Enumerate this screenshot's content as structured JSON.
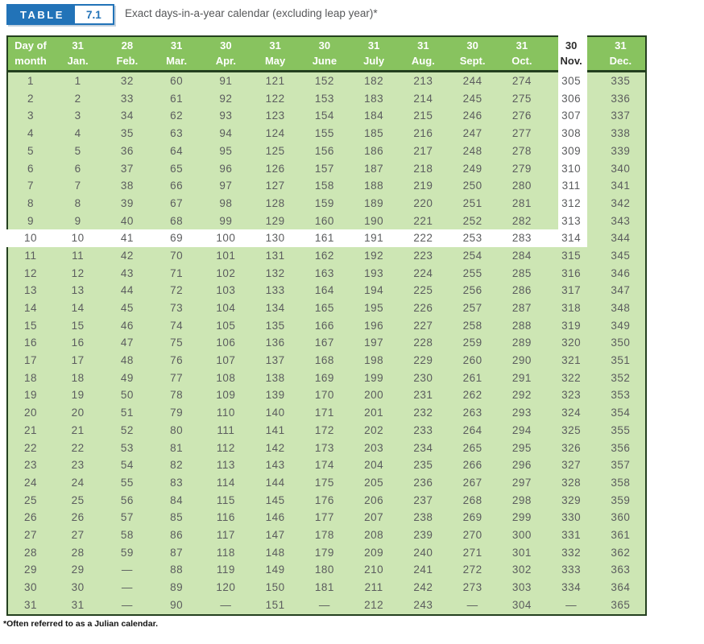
{
  "badge": {
    "label": "TABLE",
    "number": "7.1"
  },
  "title": "Exact days-in-a-year calendar (excluding leap year)*",
  "footnote": "*Often referred to as a Julian calendar.",
  "colors": {
    "header_green": "#88c35f",
    "body_green": "#cde6b4",
    "border_dark": "#24401f",
    "badge_blue": "#2273b8",
    "body_text": "#5b5c5e"
  },
  "table": {
    "corner_header": [
      "Day of",
      "month"
    ],
    "columns": [
      {
        "days": "31",
        "month": "Jan."
      },
      {
        "days": "28",
        "month": "Feb."
      },
      {
        "days": "31",
        "month": "Mar."
      },
      {
        "days": "30",
        "month": "Apr."
      },
      {
        "days": "31",
        "month": "May"
      },
      {
        "days": "30",
        "month": "June"
      },
      {
        "days": "31",
        "month": "July"
      },
      {
        "days": "31",
        "month": "Aug."
      },
      {
        "days": "30",
        "month": "Sept."
      },
      {
        "days": "31",
        "month": "Oct."
      },
      {
        "days": "30",
        "month": "Nov."
      },
      {
        "days": "31",
        "month": "Dec."
      }
    ],
    "highlight": {
      "day": 10,
      "month": "Nov.",
      "month_index": 10,
      "intersection_value": 314
    },
    "rows": [
      [
        1,
        1,
        32,
        60,
        91,
        121,
        152,
        182,
        213,
        244,
        274,
        305,
        335
      ],
      [
        2,
        2,
        33,
        61,
        92,
        122,
        153,
        183,
        214,
        245,
        275,
        306,
        336
      ],
      [
        3,
        3,
        34,
        62,
        93,
        123,
        154,
        184,
        215,
        246,
        276,
        307,
        337
      ],
      [
        4,
        4,
        35,
        63,
        94,
        124,
        155,
        185,
        216,
        247,
        277,
        308,
        338
      ],
      [
        5,
        5,
        36,
        64,
        95,
        125,
        156,
        186,
        217,
        248,
        278,
        309,
        339
      ],
      [
        6,
        6,
        37,
        65,
        96,
        126,
        157,
        187,
        218,
        249,
        279,
        310,
        340
      ],
      [
        7,
        7,
        38,
        66,
        97,
        127,
        158,
        188,
        219,
        250,
        280,
        311,
        341
      ],
      [
        8,
        8,
        39,
        67,
        98,
        128,
        159,
        189,
        220,
        251,
        281,
        312,
        342
      ],
      [
        9,
        9,
        40,
        68,
        99,
        129,
        160,
        190,
        221,
        252,
        282,
        313,
        343
      ],
      [
        10,
        10,
        41,
        69,
        100,
        130,
        161,
        191,
        222,
        253,
        283,
        314,
        344
      ],
      [
        11,
        11,
        42,
        70,
        101,
        131,
        162,
        192,
        223,
        254,
        284,
        315,
        345
      ],
      [
        12,
        12,
        43,
        71,
        102,
        132,
        163,
        193,
        224,
        255,
        285,
        316,
        346
      ],
      [
        13,
        13,
        44,
        72,
        103,
        133,
        164,
        194,
        225,
        256,
        286,
        317,
        347
      ],
      [
        14,
        14,
        45,
        73,
        104,
        134,
        165,
        195,
        226,
        257,
        287,
        318,
        348
      ],
      [
        15,
        15,
        46,
        74,
        105,
        135,
        166,
        196,
        227,
        258,
        288,
        319,
        349
      ],
      [
        16,
        16,
        47,
        75,
        106,
        136,
        167,
        197,
        228,
        259,
        289,
        320,
        350
      ],
      [
        17,
        17,
        48,
        76,
        107,
        137,
        168,
        198,
        229,
        260,
        290,
        321,
        351
      ],
      [
        18,
        18,
        49,
        77,
        108,
        138,
        169,
        199,
        230,
        261,
        291,
        322,
        352
      ],
      [
        19,
        19,
        50,
        78,
        109,
        139,
        170,
        200,
        231,
        262,
        292,
        323,
        353
      ],
      [
        20,
        20,
        51,
        79,
        110,
        140,
        171,
        201,
        232,
        263,
        293,
        324,
        354
      ],
      [
        21,
        21,
        52,
        80,
        111,
        141,
        172,
        202,
        233,
        264,
        294,
        325,
        355
      ],
      [
        22,
        22,
        53,
        81,
        112,
        142,
        173,
        203,
        234,
        265,
        295,
        326,
        356
      ],
      [
        23,
        23,
        54,
        82,
        113,
        143,
        174,
        204,
        235,
        266,
        296,
        327,
        357
      ],
      [
        24,
        24,
        55,
        83,
        114,
        144,
        175,
        205,
        236,
        267,
        297,
        328,
        358
      ],
      [
        25,
        25,
        56,
        84,
        115,
        145,
        176,
        206,
        237,
        268,
        298,
        329,
        359
      ],
      [
        26,
        26,
        57,
        85,
        116,
        146,
        177,
        207,
        238,
        269,
        299,
        330,
        360
      ],
      [
        27,
        27,
        58,
        86,
        117,
        147,
        178,
        208,
        239,
        270,
        300,
        331,
        361
      ],
      [
        28,
        28,
        59,
        87,
        118,
        148,
        179,
        209,
        240,
        271,
        301,
        332,
        362
      ],
      [
        29,
        29,
        "—",
        88,
        119,
        149,
        180,
        210,
        241,
        272,
        302,
        333,
        363
      ],
      [
        30,
        30,
        "—",
        89,
        120,
        150,
        181,
        211,
        242,
        273,
        303,
        334,
        364
      ],
      [
        31,
        31,
        "—",
        90,
        "—",
        151,
        "—",
        212,
        243,
        "—",
        304,
        "—",
        365
      ]
    ]
  }
}
